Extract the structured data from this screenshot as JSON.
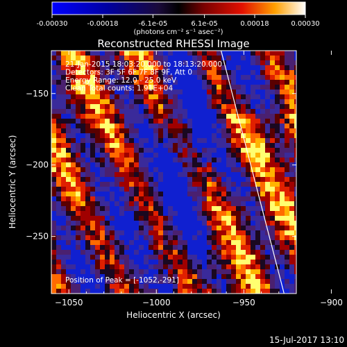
{
  "colorbar": {
    "tick_labels": [
      "-0.00030",
      "-0.00018",
      "-6.1e-05",
      "6.1e-05",
      "0.00018",
      "0.00030"
    ],
    "tick_values": [
      -0.0003,
      -0.00018,
      -6.1e-05,
      6.1e-05,
      0.00018,
      0.0003
    ],
    "range": [
      -0.0003,
      0.0003
    ],
    "units": "(photons cm⁻² s⁻¹ asec⁻²)"
  },
  "chart_data": {
    "type": "heatmap",
    "title": "Reconstructed RHESSI Image",
    "xlabel": "Heliocentric X (arcsec)",
    "ylabel": "Heliocentric Y (arcsec)",
    "xlim": [
      -1060,
      -920
    ],
    "ylim": [
      -290,
      -120
    ],
    "x_ticks": [
      -1050,
      -1000,
      -950,
      -900
    ],
    "x_tick_labels": [
      "−1050",
      "−1000",
      "−950",
      "−900"
    ],
    "y_ticks": [
      -250,
      -200,
      -150
    ],
    "y_tick_labels": [
      "−250",
      "−200",
      "−150"
    ],
    "limb_line": [
      {
        "x": -963,
        "y": -120
      },
      {
        "x": -927,
        "y": -290
      }
    ],
    "annotations": [
      "21-Jan-2015 18:03:20.000 to 18:13:20.000",
      "Detectors: 3F 5F 6F 7F 8F 9F, Att 0",
      "Energy Range: 12.0 - 25.0 keV",
      "Clean    Total counts: 1.91E+04"
    ],
    "peak_text": "Position of Peak = [-1052,-291]",
    "colors": {
      "negative": "#0000ff",
      "zero": "#000000",
      "positive": "#ffff60"
    }
  },
  "footer": {
    "timestamp": "15-Jul-2017 13:10"
  }
}
